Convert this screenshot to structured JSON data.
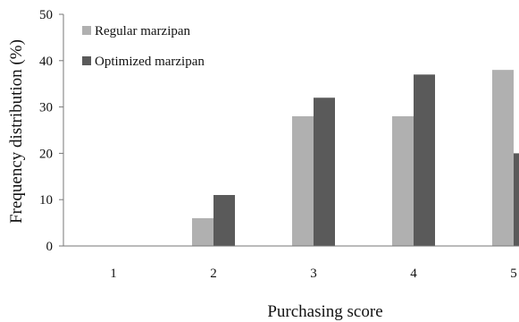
{
  "chart_data": {
    "type": "bar",
    "categories": [
      "1",
      "2",
      "3",
      "4",
      "5"
    ],
    "series": [
      {
        "name": "Regular marzipan",
        "values": [
          0,
          6,
          28,
          28,
          38
        ],
        "color": "#b0b0b0"
      },
      {
        "name": "Optimized marzipan",
        "values": [
          0,
          11,
          32,
          37,
          20
        ],
        "color": "#5a5a5a"
      }
    ],
    "xlabel": "Purchasing score",
    "ylabel": "Frequency distribution (%)",
    "ylim": [
      0,
      50
    ],
    "yticks": [
      "0",
      "10",
      "20",
      "30",
      "40",
      "50"
    ],
    "grid": false,
    "legend_position": "top-left"
  }
}
